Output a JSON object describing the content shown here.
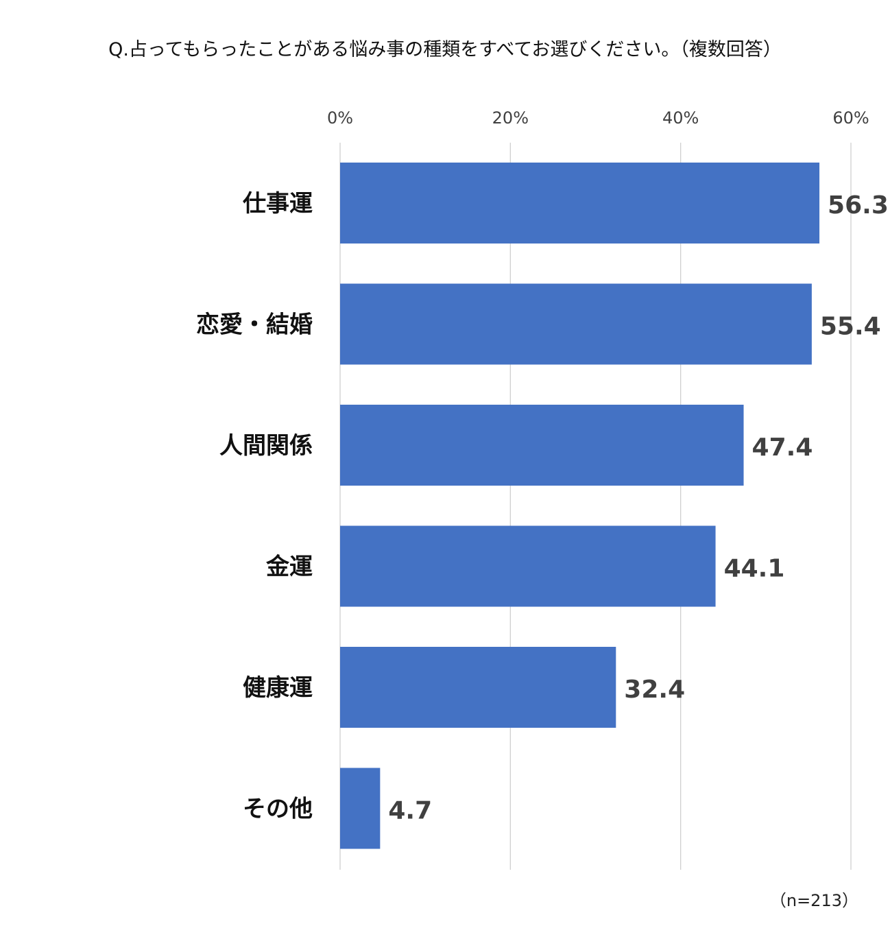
{
  "chart_data": {
    "type": "bar",
    "orientation": "horizontal",
    "title": "Q.占ってもらったことがある悩み事の種類をすべてお選びください。（複数回答）",
    "categories": [
      "仕事運",
      "恋愛・結婚",
      "人間関係",
      "金運",
      "健康運",
      "その他"
    ],
    "values": [
      56.3,
      55.4,
      47.4,
      44.1,
      32.4,
      4.7
    ],
    "unit": "%",
    "xlim": [
      0,
      60
    ],
    "ticks": [
      0,
      20,
      40,
      60
    ],
    "tick_labels": [
      "0%",
      "20%",
      "40%",
      "60%"
    ],
    "x_axis_position": "top",
    "grid": true,
    "legend": "none",
    "bar_color": "#4472C4",
    "value_label_color": "#404040",
    "note": "（n=213）"
  }
}
